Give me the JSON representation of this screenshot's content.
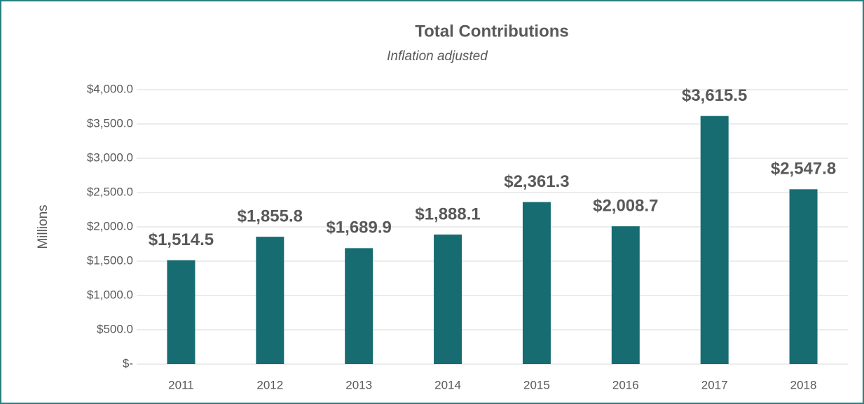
{
  "chart_data": {
    "type": "bar",
    "title": "Total Contributions",
    "subtitle": "Inflation adjusted",
    "y_label": "Millions",
    "categories": [
      "2011",
      "2012",
      "2013",
      "2014",
      "2015",
      "2016",
      "2017",
      "2018"
    ],
    "values": [
      1514.5,
      1855.8,
      1689.9,
      1888.1,
      2361.3,
      2008.7,
      3615.5,
      2547.8
    ],
    "value_labels": [
      "$1,514.5",
      "$1,855.8",
      "$1,689.9",
      "$1,888.1",
      "$2,361.3",
      "$2,008.7",
      "$3,615.5",
      "$2,547.8"
    ],
    "color": "#176c72",
    "ylim": [
      0,
      4000
    ],
    "yticks": [
      {
        "value": 0,
        "label": "$-"
      },
      {
        "value": 500,
        "label": "$500.0"
      },
      {
        "value": 1000,
        "label": "$1,000.0"
      },
      {
        "value": 1500,
        "label": "$1,500.0"
      },
      {
        "value": 2000,
        "label": "$2,000.0"
      },
      {
        "value": 2500,
        "label": "$2,500.0"
      },
      {
        "value": 3000,
        "label": "$3,000.0"
      },
      {
        "value": 3500,
        "label": "$3,500.0"
      },
      {
        "value": 4000,
        "label": "$4,000.0"
      }
    ],
    "grid": true
  }
}
